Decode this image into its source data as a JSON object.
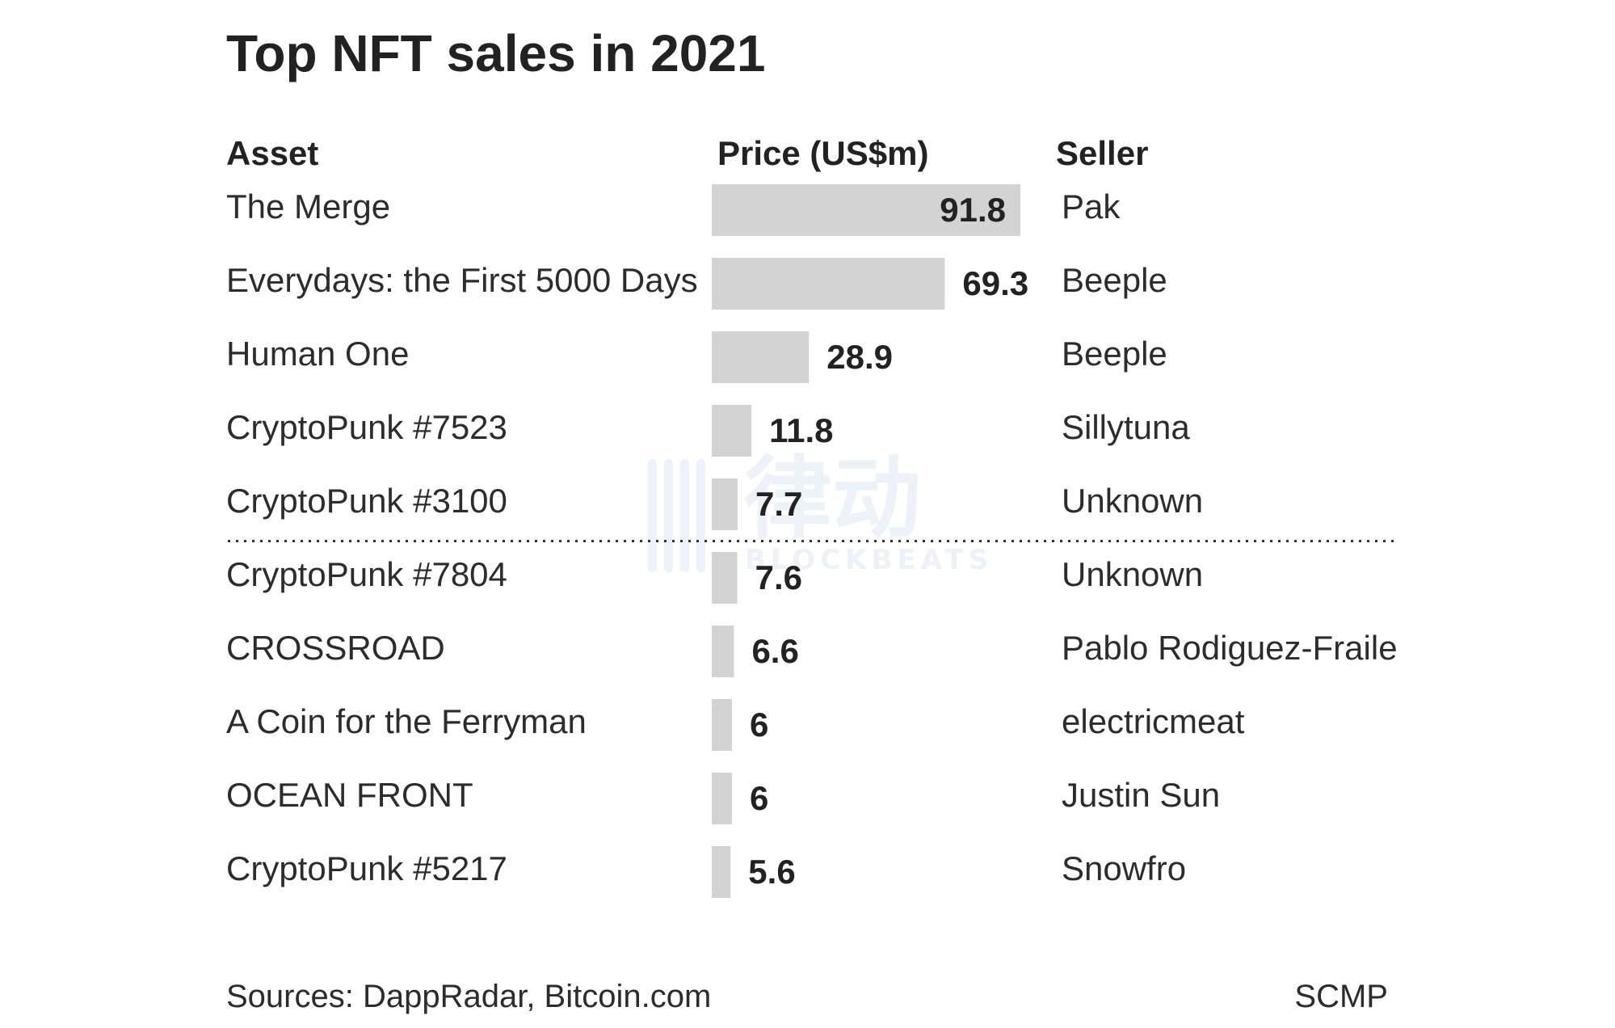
{
  "chart_data": {
    "type": "bar",
    "orientation": "horizontal",
    "title": "Top NFT sales in 2021",
    "headers": {
      "asset": "Asset",
      "price": "Price (US$m)",
      "seller": "Seller"
    },
    "rows": [
      {
        "asset": "The Merge",
        "value": 91.8,
        "value_label": "91.8",
        "seller": "Pak"
      },
      {
        "asset": "Everydays: the First 5000 Days",
        "value": 69.3,
        "value_label": "69.3",
        "seller": "Beeple"
      },
      {
        "asset": "Human One",
        "value": 28.9,
        "value_label": "28.9",
        "seller": "Beeple"
      },
      {
        "asset": "CryptoPunk #7523",
        "value": 11.8,
        "value_label": "11.8",
        "seller": "Sillytuna"
      },
      {
        "asset": "CryptoPunk #3100",
        "value": 7.7,
        "value_label": "7.7",
        "seller": "Unknown"
      },
      {
        "asset": "CryptoPunk #7804",
        "value": 7.6,
        "value_label": "7.6",
        "seller": "Unknown"
      },
      {
        "asset": "CROSSROAD",
        "value": 6.6,
        "value_label": "6.6",
        "seller": "Pablo Rodiguez-Fraile"
      },
      {
        "asset": "A Coin for the Ferryman",
        "value": 6,
        "value_label": "6",
        "seller": "electricmeat"
      },
      {
        "asset": "OCEAN FRONT",
        "value": 6,
        "value_label": "6",
        "seller": "Justin Sun"
      },
      {
        "asset": "CryptoPunk #5217",
        "value": 5.6,
        "value_label": "5.6",
        "seller": "Snowfro"
      }
    ],
    "divider_after_row": 5,
    "source": "Sources: DappRadar, Bitcoin.com",
    "credit": "SCMP",
    "grid": false,
    "colors": {
      "bar": "#d3d3d3",
      "text": "#222222"
    }
  },
  "watermark": {
    "text": "律动",
    "subtext": "BLOCKBEATS"
  }
}
